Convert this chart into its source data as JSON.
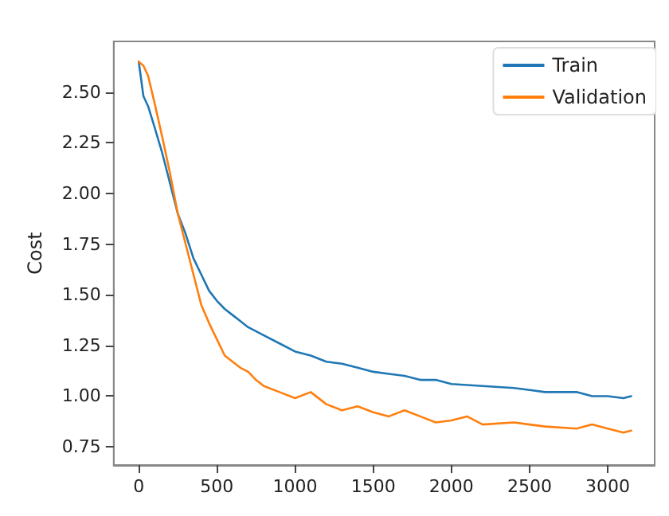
{
  "chart_data": {
    "type": "line",
    "ylabel": "Cost",
    "xlim": [
      -160,
      3300
    ],
    "ylim": [
      0.66,
      2.75
    ],
    "xticks": [
      0,
      500,
      1000,
      1500,
      2000,
      2500,
      3000
    ],
    "yticks": [
      0.75,
      {
        "value": 1,
        "label": "1.00"
      },
      1.25,
      {
        "value": 1.5,
        "label": "1.50"
      },
      1.75,
      {
        "value": 2,
        "label": "2.00"
      },
      2.25,
      {
        "value": 2.5,
        "label": "2.50"
      }
    ],
    "grid": false,
    "legend": "top right",
    "marker": "none",
    "line_style": "solid",
    "series": [
      {
        "name": "Train",
        "color": "#1f77b4",
        "x": [
          0,
          30,
          60,
          100,
          150,
          200,
          250,
          300,
          350,
          400,
          450,
          500,
          550,
          600,
          650,
          700,
          800,
          900,
          1000,
          1100,
          1200,
          1300,
          1400,
          1500,
          1600,
          1700,
          1800,
          1900,
          2000,
          2200,
          2400,
          2500,
          2600,
          2800,
          2900,
          3000,
          3100,
          3150
        ],
        "values": [
          2.65,
          2.48,
          2.43,
          2.33,
          2.2,
          2.05,
          1.9,
          1.8,
          1.68,
          1.6,
          1.52,
          1.47,
          1.43,
          1.4,
          1.37,
          1.34,
          1.3,
          1.26,
          1.22,
          1.2,
          1.17,
          1.16,
          1.14,
          1.12,
          1.11,
          1.1,
          1.08,
          1.08,
          1.06,
          1.05,
          1.04,
          1.03,
          1.02,
          1.02,
          1.0,
          1.0,
          0.99,
          1.0
        ]
      },
      {
        "name": "Validation",
        "color": "#ff7f0e",
        "x": [
          0,
          30,
          60,
          100,
          150,
          200,
          250,
          300,
          350,
          400,
          450,
          500,
          550,
          600,
          650,
          700,
          750,
          800,
          900,
          1000,
          1100,
          1200,
          1300,
          1400,
          1500,
          1600,
          1700,
          1800,
          1900,
          2000,
          2100,
          2200,
          2400,
          2500,
          2600,
          2800,
          2900,
          3000,
          3100,
          3150
        ],
        "values": [
          2.65,
          2.63,
          2.58,
          2.45,
          2.28,
          2.1,
          1.9,
          1.75,
          1.6,
          1.45,
          1.36,
          1.28,
          1.2,
          1.17,
          1.14,
          1.12,
          1.08,
          1.05,
          1.02,
          0.99,
          1.02,
          0.96,
          0.93,
          0.95,
          0.92,
          0.9,
          0.93,
          0.9,
          0.87,
          0.88,
          0.9,
          0.86,
          0.87,
          0.86,
          0.85,
          0.84,
          0.86,
          0.84,
          0.82,
          0.83
        ]
      }
    ]
  }
}
